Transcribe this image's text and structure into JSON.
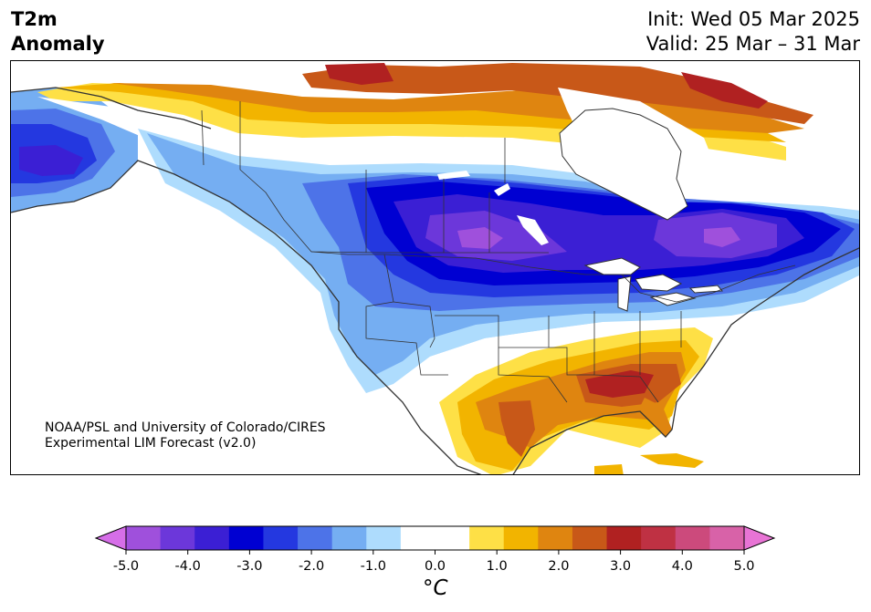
{
  "header": {
    "variable_line1": "T2m",
    "variable_line2": "Anomaly",
    "init_text": "Init: Wed 05 Mar 2025",
    "valid_text": "Valid: 25 Mar – 31 Mar"
  },
  "map": {
    "region": "North America",
    "credit_line1": "NOAA/PSL and University of Colorado/CIRES",
    "credit_line2": "Experimental LIM Forecast (v2.0)"
  },
  "colorbar": {
    "units": "°C",
    "tick_labels": [
      "-5.0",
      "-4.0",
      "-3.0",
      "-2.0",
      "-1.0",
      "0.0",
      "1.0",
      "2.0",
      "3.0",
      "4.0",
      "5.0"
    ],
    "extend": "both",
    "colors": [
      "#d66ee8",
      "#9f50dc",
      "#6c37da",
      "#3b1fd4",
      "#0000d2",
      "#2438e0",
      "#4d73e8",
      "#75aef2",
      "#aedcfd",
      "#ffffff",
      "#ffffff",
      "#fee046",
      "#f2b400",
      "#df8510",
      "#c85818",
      "#b02121",
      "#bf3143",
      "#cc4a7c",
      "#d862a8",
      "#e874d5"
    ]
  }
}
